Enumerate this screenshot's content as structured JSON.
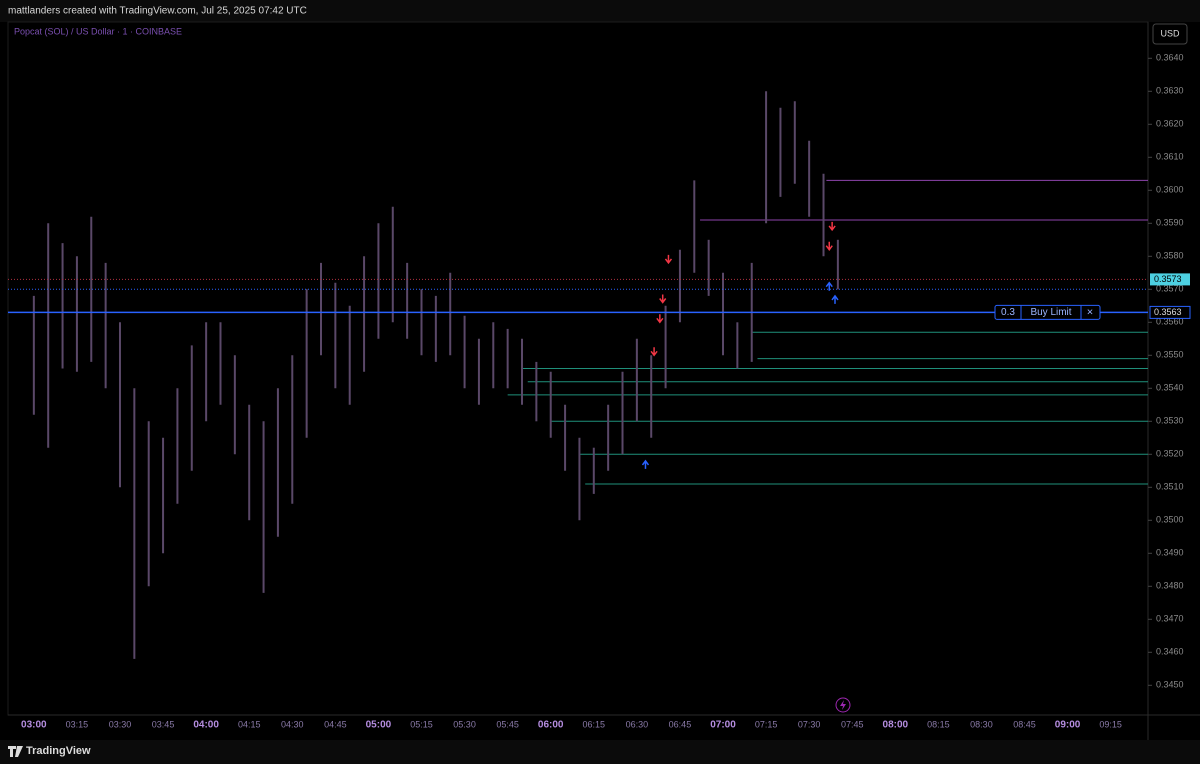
{
  "header": "mattlanders created with TradingView.com, Jul 25, 2025 07:42 UTC",
  "footer": "TradingView",
  "chart_data": {
    "type": "ohlc",
    "title": "Popcat (SOL) / US Dollar · 1 · COINBASE",
    "currency": "USD",
    "x": [
      "03:00",
      "03:05",
      "03:10",
      "03:15",
      "03:20",
      "03:25",
      "03:30",
      "03:35",
      "03:40",
      "03:45",
      "03:50",
      "03:55",
      "04:00",
      "04:05",
      "04:10",
      "04:15",
      "04:20",
      "04:25",
      "04:30",
      "04:35",
      "04:40",
      "04:45",
      "04:50",
      "04:55",
      "05:00",
      "05:05",
      "05:10",
      "05:15",
      "05:20",
      "05:25",
      "05:30",
      "05:35",
      "05:40",
      "05:45",
      "05:50",
      "05:55",
      "06:00",
      "06:05",
      "06:10",
      "06:15",
      "06:20",
      "06:25",
      "06:30",
      "06:35",
      "06:40",
      "06:45",
      "06:50",
      "06:55",
      "07:00",
      "07:05",
      "07:10",
      "07:15",
      "07:20",
      "07:25",
      "07:30",
      "07:35",
      "07:40"
    ],
    "series": [
      {
        "color": "#5a4868",
        "high": [
          0.3568,
          0.359,
          0.3584,
          0.358,
          0.3592,
          0.3578,
          0.356,
          0.354,
          0.353,
          0.3525,
          0.354,
          0.3553,
          0.356,
          0.356,
          0.355,
          0.3535,
          0.353,
          0.354,
          0.355,
          0.357,
          0.3578,
          0.3572,
          0.3565,
          0.358,
          0.359,
          0.3595,
          0.3578,
          0.357,
          0.3568,
          0.3575,
          0.3562,
          0.3555,
          0.356,
          0.3558,
          0.3555,
          0.3548,
          0.3545,
          0.3535,
          0.3525,
          0.3522,
          0.3535,
          0.3545,
          0.3555,
          0.355,
          0.3565,
          0.3582,
          0.3603,
          0.3585,
          0.3575,
          0.356,
          0.3578,
          0.363,
          0.3625,
          0.3627,
          0.3615,
          0.3605,
          0.3585
        ],
        "low": [
          0.3532,
          0.3522,
          0.3546,
          0.3545,
          0.3548,
          0.354,
          0.351,
          0.3458,
          0.348,
          0.349,
          0.3505,
          0.3515,
          0.353,
          0.3535,
          0.352,
          0.35,
          0.3478,
          0.3495,
          0.3505,
          0.3525,
          0.355,
          0.354,
          0.3535,
          0.3545,
          0.3555,
          0.356,
          0.3555,
          0.355,
          0.3548,
          0.355,
          0.354,
          0.3535,
          0.354,
          0.354,
          0.3535,
          0.353,
          0.3525,
          0.3515,
          0.35,
          0.3508,
          0.3515,
          0.352,
          0.353,
          0.3525,
          0.354,
          0.356,
          0.3575,
          0.3568,
          0.355,
          0.3546,
          0.3548,
          0.359,
          0.3598,
          0.3602,
          0.3592,
          0.358,
          0.357
        ]
      }
    ],
    "levels": [
      {
        "price": 0.3603,
        "from": "07:36",
        "color": "#8e44ad"
      },
      {
        "price": 0.3591,
        "from": "06:52",
        "color": "#8e44ad"
      },
      {
        "price": 0.3557,
        "from": "07:10",
        "color": "#1f8f7a"
      },
      {
        "price": 0.3549,
        "from": "07:12",
        "color": "#1f8f7a"
      },
      {
        "price": 0.3546,
        "from": "05:50",
        "color": "#1f8f7a"
      },
      {
        "price": 0.3542,
        "from": "05:52",
        "color": "#1f8f7a"
      },
      {
        "price": 0.3538,
        "from": "05:45",
        "color": "#1f8f7a"
      },
      {
        "price": 0.353,
        "from": "06:00",
        "color": "#1f8f7a"
      },
      {
        "price": 0.352,
        "from": "06:10",
        "color": "#1f8f7a"
      },
      {
        "price": 0.3511,
        "from": "06:12",
        "color": "#1f8f7a"
      }
    ],
    "markers": [
      {
        "time": "06:33",
        "price": 0.3518,
        "side": "buy",
        "color": "#2962ff"
      },
      {
        "time": "06:36",
        "price": 0.355,
        "side": "sell",
        "color": "#f23645"
      },
      {
        "time": "06:38",
        "price": 0.356,
        "side": "sell",
        "color": "#f23645"
      },
      {
        "time": "06:39",
        "price": 0.3566,
        "side": "sell",
        "color": "#f23645"
      },
      {
        "time": "06:41",
        "price": 0.3578,
        "side": "sell",
        "color": "#f23645"
      },
      {
        "time": "07:37",
        "price": 0.3582,
        "side": "sell",
        "color": "#f23645"
      },
      {
        "time": "07:38",
        "price": 0.3588,
        "side": "sell",
        "color": "#f23645"
      },
      {
        "time": "07:37",
        "price": 0.3572,
        "side": "buy",
        "color": "#2962ff"
      },
      {
        "time": "07:39",
        "price": 0.3568,
        "side": "buy",
        "color": "#2962ff"
      }
    ],
    "price_tags": [
      {
        "value": 0.3573,
        "label": "0.3573",
        "color": "#4dd0e1",
        "line_color": "#b03040"
      },
      {
        "value": 0.357,
        "label": null,
        "color": "#2962ff",
        "line_color": "#2962ff"
      }
    ],
    "order": {
      "price": 0.3563,
      "price_label": "0.3563",
      "quantity": 0.3,
      "label": "Buy Limit",
      "close": "×",
      "color": "#2962ff"
    },
    "ylim": [
      0.3441,
      0.3651
    ],
    "yticks": [
      {
        "value": 0.345,
        "label": "0.3450"
      },
      {
        "value": 0.346,
        "label": "0.3460"
      },
      {
        "value": 0.347,
        "label": "0.3470"
      },
      {
        "value": 0.348,
        "label": "0.3480"
      },
      {
        "value": 0.349,
        "label": "0.3490"
      },
      {
        "value": 0.35,
        "label": "0.3500"
      },
      {
        "value": 0.351,
        "label": "0.3510"
      },
      {
        "value": 0.352,
        "label": "0.3520"
      },
      {
        "value": 0.353,
        "label": "0.3530"
      },
      {
        "value": 0.354,
        "label": "0.3540"
      },
      {
        "value": 0.355,
        "label": "0.3550"
      },
      {
        "value": 0.356,
        "label": "0.3560"
      },
      {
        "value": 0.357,
        "label": "0.3570"
      },
      {
        "value": 0.358,
        "label": "0.3580"
      },
      {
        "value": 0.359,
        "label": "0.3590"
      },
      {
        "value": 0.36,
        "label": "0.3600"
      },
      {
        "value": 0.361,
        "label": "0.3610"
      },
      {
        "value": 0.362,
        "label": "0.3620"
      },
      {
        "value": 0.363,
        "label": "0.3630"
      },
      {
        "value": 0.364,
        "label": "0.3640"
      }
    ],
    "xlim": [
      "02:51",
      "09:28"
    ],
    "xticks": [
      "03:00",
      "03:15",
      "03:30",
      "03:45",
      "04:00",
      "04:15",
      "04:30",
      "04:45",
      "05:00",
      "05:15",
      "05:30",
      "05:45",
      "06:00",
      "06:15",
      "06:30",
      "06:45",
      "07:00",
      "07:15",
      "07:30",
      "07:45",
      "08:00",
      "08:15",
      "08:30",
      "08:45",
      "09:00",
      "09:15"
    ]
  }
}
